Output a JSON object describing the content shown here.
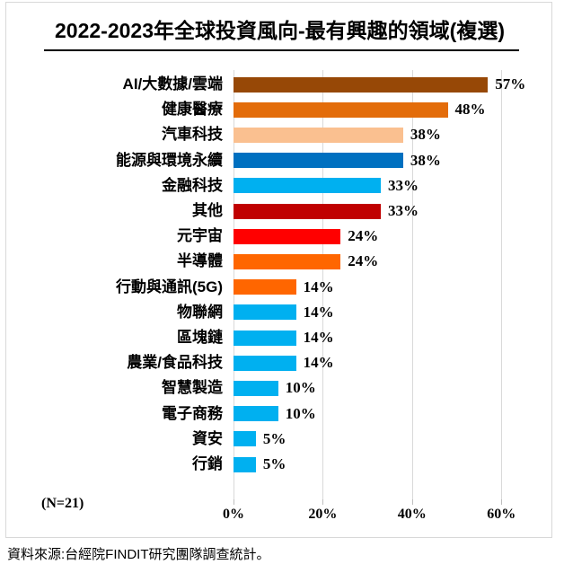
{
  "chart_data": {
    "type": "bar",
    "orientation": "horizontal",
    "title": "2022-2023年全球投資風向-最有興趣的領域(複選)",
    "categories": [
      "AI/大數據/雲端",
      "健康醫療",
      "汽車科技",
      "能源與環境永續",
      "金融科技",
      "其他",
      "元宇宙",
      "半導體",
      "行動與通訊(5G)",
      "物聯網",
      "區塊鏈",
      "農業/食品科技",
      "智慧製造",
      "電子商務",
      "資安",
      "行銷"
    ],
    "values": [
      57,
      48,
      38,
      38,
      33,
      33,
      24,
      24,
      14,
      14,
      14,
      14,
      10,
      10,
      5,
      5
    ],
    "value_labels": [
      "57%",
      "48%",
      "38%",
      "38%",
      "33%",
      "33%",
      "24%",
      "24%",
      "14%",
      "14%",
      "14%",
      "14%",
      "10%",
      "10%",
      "5%",
      "5%"
    ],
    "bar_colors": [
      "#974806",
      "#E36C0A",
      "#FAC090",
      "#0070C0",
      "#00B0F0",
      "#C00000",
      "#FF0000",
      "#FF6600",
      "#FF6600",
      "#00B0F0",
      "#00B0F0",
      "#00B0F0",
      "#00B0F0",
      "#00B0F0",
      "#00B0F0",
      "#00B0F0"
    ],
    "x_axis": {
      "tick_labels": [
        "0%",
        "20%",
        "40%",
        "60%"
      ],
      "tick_values": [
        0,
        20,
        40,
        60
      ],
      "range": [
        0,
        63
      ],
      "gridlines": true,
      "gridline_color": "#D9D9D9"
    },
    "n_label": "(N=21)",
    "legend_position": "none"
  },
  "footer": {
    "source_text": "資料來源:台經院FINDIT研究團隊調查統計。"
  }
}
